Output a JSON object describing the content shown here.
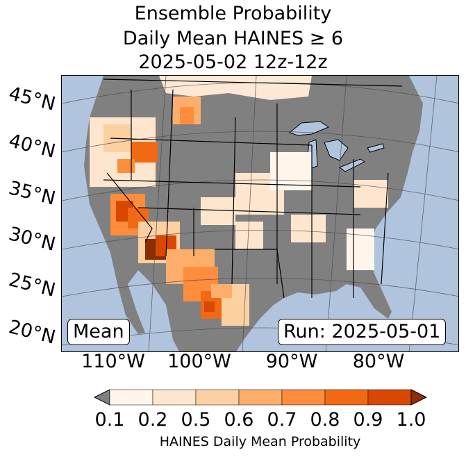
{
  "title": {
    "line1": "Ensemble Probability",
    "line2": "Daily Mean HAINES ≥ 6",
    "line3": "2025-05-02 12z-12z"
  },
  "map": {
    "lat_labels": [
      "45°N",
      "40°N",
      "35°N",
      "30°N",
      "25°N",
      "20°N"
    ],
    "lon_labels": [
      "110°W",
      "100°W",
      "90°W",
      "80°W"
    ],
    "mean_label": "Mean",
    "run_label": "Run: 2025-05-01",
    "colors": {
      "ocean": "#b0c4de",
      "land_masked": "#808080",
      "borders": "#000000",
      "gridlines": "#4a4a4a"
    }
  },
  "colorbar": {
    "ticks": [
      "0.1",
      "0.2",
      "0.5",
      "0.6",
      "0.7",
      "0.8",
      "0.9",
      "1.0"
    ],
    "label": "HAINES Daily Mean Probability",
    "under_color": "#808080",
    "colors": [
      "#fff5eb",
      "#fee6ce",
      "#fdd0a2",
      "#fdae6b",
      "#fd8d3c",
      "#f16913",
      "#d94801",
      "#8c2d04"
    ]
  }
}
